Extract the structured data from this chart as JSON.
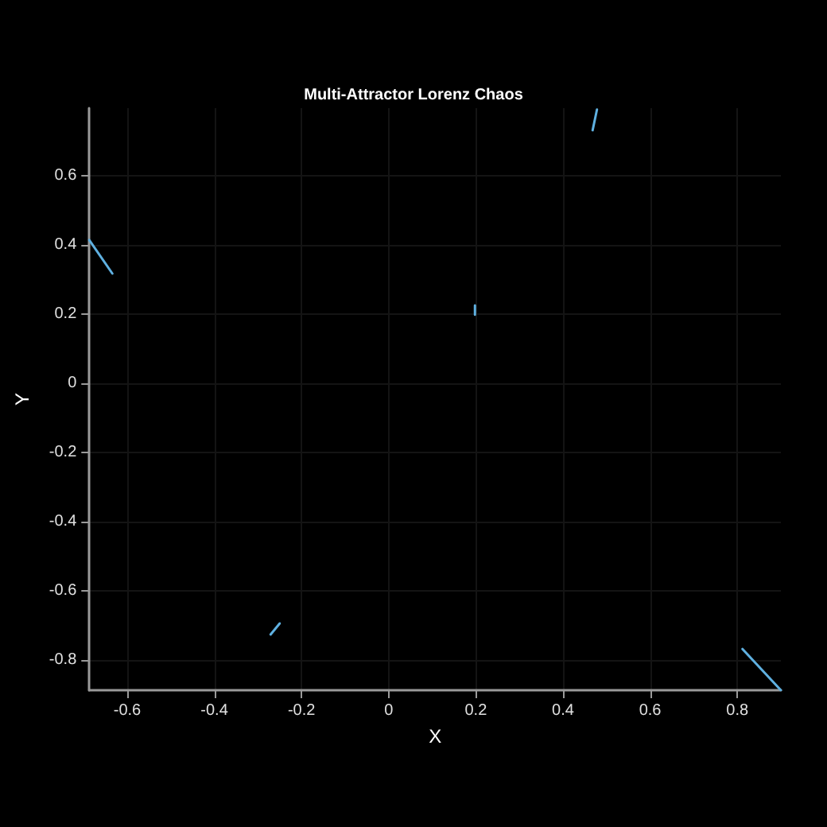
{
  "chart_data": {
    "type": "line",
    "title": "Multi-Attractor Lorenz Chaos",
    "xlabel": "X",
    "ylabel": "Y",
    "xlim": [
      -0.687,
      0.9
    ],
    "ylim": [
      -0.887,
      0.795
    ],
    "xticks": [
      -0.6,
      -0.4,
      -0.2,
      0,
      0.2,
      0.4,
      0.6,
      0.8
    ],
    "yticks": [
      -0.8,
      -0.6,
      -0.4,
      -0.2,
      0,
      0.2,
      0.4,
      0.6
    ],
    "grid": true,
    "marker": "none",
    "line_style": "solid",
    "series": [
      {
        "color": "#5fb0e0",
        "x": [
          -0.687,
          -0.634
        ],
        "values": [
          0.414,
          0.317
        ]
      },
      {
        "color": "#5fb0e0",
        "x": [
          0.198,
          0.198
        ],
        "values": [
          0.225,
          0.198
        ]
      },
      {
        "color": "#5fb0e0",
        "x": [
          0.468,
          0.478
        ],
        "values": [
          0.731,
          0.791
        ]
      },
      {
        "color": "#5fb0e0",
        "x": [
          -0.271,
          -0.25
        ],
        "values": [
          -0.726,
          -0.694
        ]
      },
      {
        "color": "#5fb0e0",
        "x": [
          0.812,
          0.9
        ],
        "values": [
          -0.768,
          -0.887
        ]
      }
    ]
  }
}
